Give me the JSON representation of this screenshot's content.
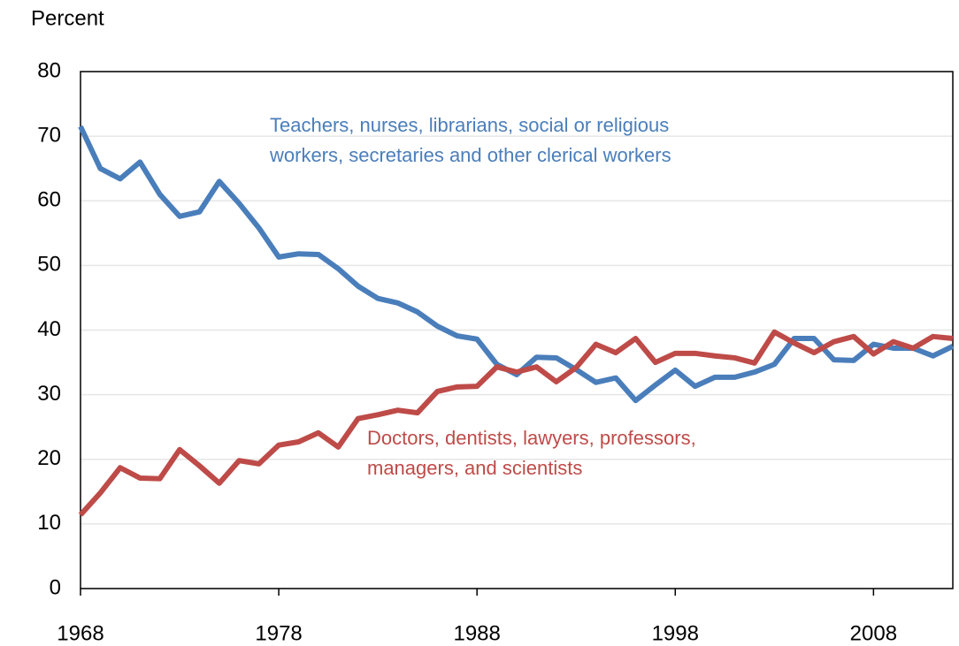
{
  "chart_data": {
    "type": "line",
    "y_label": "Percent",
    "x": [
      1968,
      1969,
      1970,
      1971,
      1972,
      1973,
      1974,
      1975,
      1976,
      1977,
      1978,
      1979,
      1980,
      1981,
      1982,
      1983,
      1984,
      1985,
      1986,
      1987,
      1988,
      1989,
      1990,
      1991,
      1992,
      1993,
      1994,
      1995,
      1996,
      1997,
      1998,
      1999,
      2000,
      2001,
      2002,
      2003,
      2004,
      2005,
      2006,
      2007,
      2008,
      2009,
      2010,
      2011,
      2012
    ],
    "series": [
      {
        "label_lines": [
          "Teachers, nurses, librarians, social or religious",
          "workers, secretaries and other clerical workers"
        ],
        "color": "#4a7ebb",
        "values": [
          71.5,
          65,
          63.4,
          66,
          61,
          57.6,
          58.3,
          63,
          59.6,
          55.8,
          51.3,
          51.8,
          51.7,
          49.5,
          46.8,
          44.9,
          44.2,
          42.8,
          40.6,
          39.1,
          38.6,
          34.7,
          33.1,
          35.8,
          35.7,
          33.9,
          31.9,
          32.6,
          29.1,
          31.5,
          33.8,
          31.3,
          32.7,
          32.7,
          33.5,
          34.7,
          38.7,
          38.7,
          35.4,
          35.3,
          37.8,
          37.2,
          37.2,
          36,
          37.5
        ]
      },
      {
        "label_lines": [
          "Doctors, dentists, lawyers, professors,",
          "managers, and scientists"
        ],
        "color": "#be4b48",
        "values": [
          11.4,
          14.8,
          18.7,
          17.1,
          17,
          21.5,
          19,
          16.3,
          19.8,
          19.3,
          22.2,
          22.7,
          24.1,
          21.9,
          26.3,
          26.9,
          27.6,
          27.2,
          30.5,
          31.2,
          31.3,
          34.3,
          33.5,
          34.3,
          32,
          34.2,
          37.8,
          36.5,
          38.7,
          35,
          36.4,
          36.4,
          36,
          35.7,
          34.9,
          39.7,
          38,
          36.5,
          38.2,
          39,
          36.3,
          38.2,
          37.2,
          39,
          38.7
        ]
      }
    ],
    "xlim": [
      1968,
      2012
    ],
    "xticks": [
      1968,
      1978,
      1988,
      1998,
      2008
    ],
    "ylim": [
      0,
      80
    ],
    "yticks": [
      0,
      10,
      20,
      30,
      40,
      50,
      60,
      70,
      80
    ],
    "grid": true
  }
}
